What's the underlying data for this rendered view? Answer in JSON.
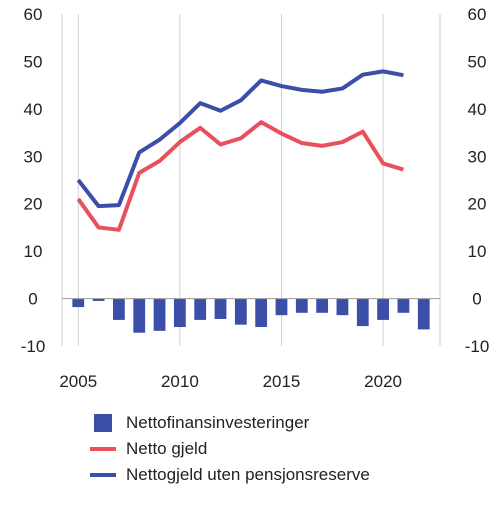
{
  "chart_data": {
    "type": "bar+line",
    "x": [
      2005,
      2006,
      2007,
      2008,
      2009,
      2010,
      2011,
      2012,
      2013,
      2014,
      2015,
      2016,
      2017,
      2018,
      2019,
      2020,
      2021,
      2022
    ],
    "xticks": [
      "2005",
      "2010",
      "2015",
      "2020"
    ],
    "xtick_values": [
      2005,
      2010,
      2015,
      2020
    ],
    "yticks": [
      "60",
      "50",
      "40",
      "30",
      "20",
      "10",
      "0",
      "-10"
    ],
    "ytick_values": [
      60,
      50,
      40,
      30,
      20,
      10,
      0,
      -10
    ],
    "ylim": [
      -10,
      60
    ],
    "xlim": [
      2004.2,
      2022.8
    ],
    "grid": "x",
    "legend_position": "bottom",
    "series": [
      {
        "name": "Nettofinansinvesteringer",
        "kind": "bar",
        "color": "#3b4ea8",
        "values": [
          -1.8,
          -0.5,
          -4.5,
          -7.2,
          -6.8,
          -6.0,
          -4.5,
          -4.3,
          -5.5,
          -6.0,
          -3.5,
          -3.0,
          -3.0,
          -3.5,
          -5.8,
          -4.5,
          -3.0,
          -6.5
        ]
      },
      {
        "name": "Netto gjeld",
        "kind": "line",
        "color": "#e8505b",
        "values": [
          21.0,
          15.0,
          14.5,
          26.5,
          29.0,
          33.0,
          36.0,
          32.5,
          33.8,
          37.2,
          34.8,
          32.8,
          32.2,
          33.0,
          35.2,
          28.5,
          27.2,
          null
        ]
      },
      {
        "name": "Nettogjeld uten pensjonsreserve",
        "kind": "line",
        "color": "#3b4ea8",
        "values": [
          25.0,
          19.5,
          19.7,
          30.8,
          33.5,
          37.0,
          41.2,
          39.6,
          41.8,
          46.0,
          44.8,
          44.0,
          43.6,
          44.3,
          47.2,
          47.9,
          47.1,
          null
        ]
      }
    ]
  }
}
